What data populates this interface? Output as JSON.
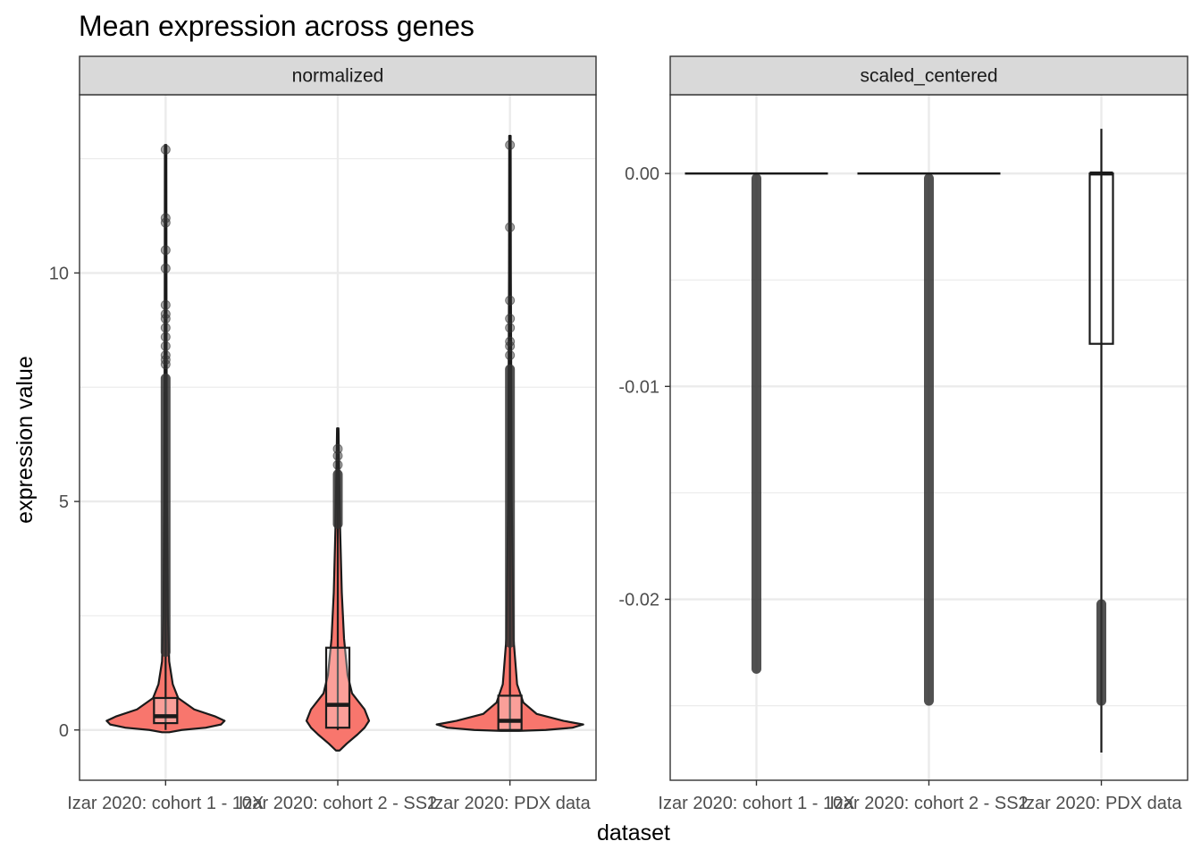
{
  "chart_data": {
    "type": "violin-boxplot",
    "title": "Mean expression across genes",
    "xlabel": "dataset",
    "ylabel": "expression value",
    "categories": [
      "Izar 2020: cohort 1 - 10X",
      "Izar 2020: cohort 2 - SS2",
      "Izar 2020: PDX data"
    ],
    "colors": {
      "violin_fill": "#f8766d",
      "outline": "#1a1a1a",
      "point": "#333333",
      "strip_fill": "#d9d9d9",
      "grid": "#ebebeb"
    },
    "panels": [
      {
        "name": "normalized",
        "ylim": [
          -1.1,
          13.9
        ],
        "yticks": [
          0,
          5,
          10
        ],
        "tick_labels": [
          "0",
          "5",
          "10"
        ],
        "violins": true,
        "boxes": [
          {
            "category": "Izar 2020: cohort 1 - 10X",
            "q1": 0.15,
            "median": 0.3,
            "q3": 0.7,
            "whisker_low": 0.0,
            "whisker_high": 12.8,
            "outlier_band": [
              1.6,
              7.8
            ],
            "outliers": [
              8.0,
              8.1,
              8.2,
              8.4,
              8.6,
              8.8,
              9.0,
              9.1,
              9.3,
              10.1,
              10.5,
              11.1,
              11.2,
              12.7
            ]
          },
          {
            "category": "Izar 2020: cohort 2 - SS2",
            "q1": 0.05,
            "median": 0.55,
            "q3": 1.8,
            "whisker_low": 0.0,
            "whisker_high": 6.6,
            "outlier_band": [
              4.4,
              5.7
            ],
            "outliers": [
              5.8,
              6.0,
              6.15
            ]
          },
          {
            "category": "Izar 2020: PDX data",
            "q1": 0.0,
            "median": 0.2,
            "q3": 0.75,
            "whisker_low": 0.0,
            "whisker_high": 13.0,
            "outlier_band": [
              1.8,
              8.0
            ],
            "outliers": [
              8.2,
              8.4,
              8.5,
              8.8,
              9.0,
              9.4,
              11.0,
              12.8
            ]
          }
        ]
      },
      {
        "name": "scaled_centered",
        "ylim": [
          -0.0285,
          0.0037
        ],
        "yticks": [
          0.0,
          -0.01,
          -0.02
        ],
        "tick_labels": [
          "0.00",
          "-0.01",
          "-0.02"
        ],
        "violins": false,
        "boxes": [
          {
            "category": "Izar 2020: cohort 1 - 10X",
            "q1": 0.0,
            "median": 0.0,
            "q3": 0.0,
            "whisker_low": 0.0,
            "whisker_high": 0.0,
            "outlier_band": [
              -0.0235,
              0.0
            ],
            "outliers": []
          },
          {
            "category": "Izar 2020: cohort 2 - SS2",
            "q1": 0.0,
            "median": 0.0,
            "q3": 0.0,
            "whisker_low": 0.0,
            "whisker_high": 0.0,
            "outlier_band": [
              -0.025,
              0.0
            ],
            "outliers": []
          },
          {
            "category": "Izar 2020: PDX data",
            "q1": -0.008,
            "median": 0.0,
            "q3": 0.0,
            "whisker_low": -0.0272,
            "whisker_high": 0.0021,
            "outlier_band": [
              -0.025,
              -0.02
            ],
            "outliers": []
          }
        ]
      }
    ],
    "grid": true,
    "legend": "none"
  }
}
